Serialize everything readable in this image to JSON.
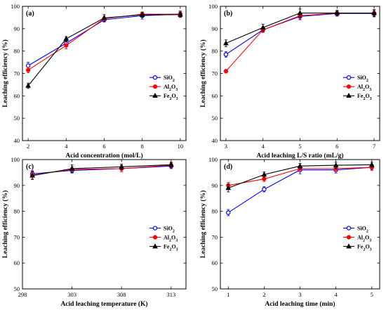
{
  "chart_data": [
    {
      "type": "line",
      "panel_label": "(a)",
      "xlabel": "Acid concentration (mol/L)",
      "ylabel": "Leaching efficiency (%)",
      "xlim": [
        1.7,
        10.3
      ],
      "ylim": [
        40,
        100
      ],
      "xticks": [
        "2",
        "4",
        "6",
        "8",
        "10"
      ],
      "yticks": [
        "40",
        "50",
        "60",
        "70",
        "80",
        "90",
        "100"
      ],
      "legend_position": "middle-right",
      "x": [
        2,
        4,
        6,
        8,
        10
      ],
      "series": [
        {
          "name": "SiO",
          "sub": "2",
          "color": "#0000ff",
          "marker": "circle-open",
          "values": [
            73.5,
            83.5,
            94,
            95.8,
            96.5
          ],
          "errors": [
            1.5,
            1.2,
            1.0,
            1.5,
            1.2
          ]
        },
        {
          "name": "Al",
          "sub": "2",
          "name2": "O",
          "sub2": "3",
          "color": "#ff0000",
          "marker": "circle",
          "values": [
            71.5,
            82.5,
            94.5,
            96.5,
            96.5
          ],
          "errors": [
            1.2,
            1.5,
            1.2,
            1.0,
            1.5
          ]
        },
        {
          "name": "Fe",
          "sub": "2",
          "name2": "O",
          "sub2": "3",
          "color": "#000000",
          "marker": "triangle",
          "values": [
            64.5,
            85.5,
            94.8,
            96.2,
            96.3
          ],
          "errors": [
            1.2,
            1.0,
            1.5,
            1.2,
            1.0
          ]
        }
      ]
    },
    {
      "type": "line",
      "panel_label": "(b)",
      "xlabel": "Acid leaching L/S ratio (mL/g)",
      "ylabel": "Leaching efficiency (%)",
      "xlim": [
        2.85,
        7.15
      ],
      "ylim": [
        40,
        100
      ],
      "xticks": [
        "3",
        "4",
        "5",
        "6",
        "7"
      ],
      "yticks": [
        "40",
        "50",
        "60",
        "70",
        "80",
        "90",
        "100"
      ],
      "legend_position": "middle-right",
      "x": [
        3,
        4,
        5,
        6,
        7
      ],
      "series": [
        {
          "name": "SiO",
          "sub": "2",
          "color": "#0000ff",
          "marker": "circle-open",
          "values": [
            78.5,
            89.5,
            95.5,
            96.8,
            96.8
          ],
          "errors": [
            1.2,
            1.0,
            1.5,
            1.2,
            1.5
          ]
        },
        {
          "name": "Al",
          "sub": "2",
          "name2": "O",
          "sub2": "3",
          "color": "#ff0000",
          "marker": "circle",
          "values": [
            71,
            89.5,
            95.8,
            97,
            97
          ],
          "errors": [
            0.8,
            1.2,
            1.5,
            1.0,
            1.2
          ]
        },
        {
          "name": "Fe",
          "sub": "2",
          "name2": "O",
          "sub2": "3",
          "color": "#000000",
          "marker": "triangle",
          "values": [
            83.5,
            90.5,
            97,
            97,
            97
          ],
          "errors": [
            1.5,
            1.5,
            1.8,
            1.2,
            1.5
          ]
        }
      ]
    },
    {
      "type": "line",
      "panel_label": "(c)",
      "xlabel": "Acid leaching temperature (K)",
      "ylabel": "Leaching efficiency (%)",
      "xlim": [
        298,
        314.5
      ],
      "ylim": [
        50,
        100
      ],
      "xticks": [
        "298",
        "303",
        "308",
        "313"
      ],
      "yticks": [
        "50",
        "60",
        "70",
        "80",
        "90",
        "100"
      ],
      "legend_position": "middle-right",
      "x": [
        299,
        303,
        308,
        313
      ],
      "series": [
        {
          "name": "SiO",
          "sub": "2",
          "color": "#0000ff",
          "marker": "circle-open",
          "values": [
            94.5,
            95.8,
            96.5,
            97.5
          ],
          "errors": [
            1.2,
            1.0,
            1.2,
            1.0
          ]
        },
        {
          "name": "Al",
          "sub": "2",
          "name2": "O",
          "sub2": "3",
          "color": "#ff0000",
          "marker": "circle",
          "values": [
            94,
            96.2,
            96.5,
            97.8
          ],
          "errors": [
            1.5,
            1.2,
            1.2,
            1.0
          ]
        },
        {
          "name": "Fe",
          "sub": "2",
          "name2": "O",
          "sub2": "3",
          "color": "#000000",
          "marker": "triangle",
          "values": [
            93.8,
            96.5,
            97.2,
            98
          ],
          "errors": [
            1.5,
            1.5,
            1.0,
            1.0
          ]
        }
      ]
    },
    {
      "type": "line",
      "panel_label": "(d)",
      "xlabel": "Acid leaching time (min)",
      "ylabel": "Leaching efficiency (%)",
      "xlim": [
        0.78,
        5.22
      ],
      "ylim": [
        50,
        100
      ],
      "xticks": [
        "1",
        "2",
        "3",
        "4",
        "5"
      ],
      "yticks": [
        "50",
        "60",
        "70",
        "80",
        "90",
        "100"
      ],
      "legend_position": "middle-right",
      "x": [
        1,
        2,
        3,
        4,
        5
      ],
      "series": [
        {
          "name": "SiO",
          "sub": "2",
          "color": "#0000ff",
          "marker": "circle-open",
          "values": [
            79.5,
            88.5,
            96,
            96,
            97
          ],
          "errors": [
            1.2,
            1.0,
            1.5,
            1.2,
            1.0
          ]
        },
        {
          "name": "Al",
          "sub": "2",
          "name2": "O",
          "sub2": "3",
          "color": "#ff0000",
          "marker": "circle",
          "values": [
            90,
            92.5,
            96.5,
            96.5,
            97
          ],
          "errors": [
            1.2,
            1.0,
            1.2,
            1.2,
            1.2
          ]
        },
        {
          "name": "Fe",
          "sub": "2",
          "name2": "O",
          "sub2": "3",
          "color": "#000000",
          "marker": "triangle",
          "values": [
            89,
            94.2,
            97.5,
            97.8,
            98
          ],
          "errors": [
            1.5,
            1.0,
            1.0,
            1.2,
            1.0
          ]
        }
      ]
    }
  ]
}
